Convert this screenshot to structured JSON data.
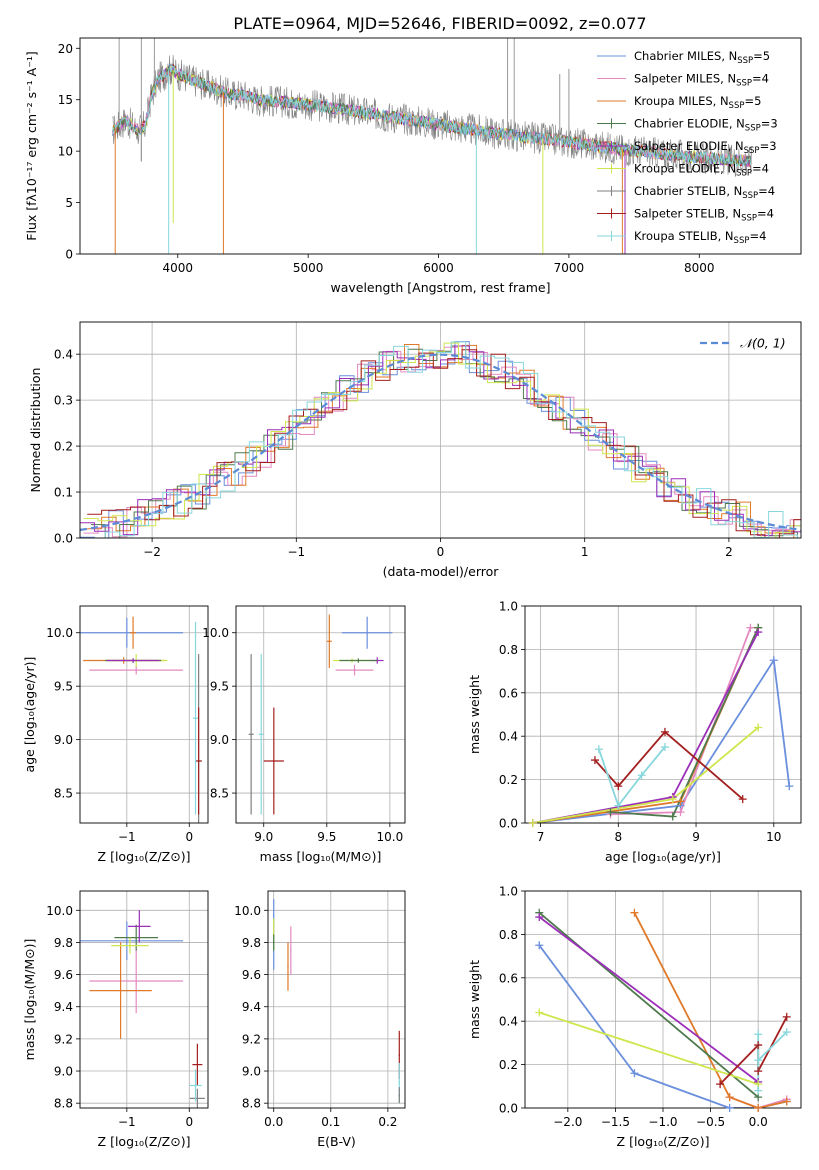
{
  "figure": {
    "title": "PLATE=0964, MJD=52646, FIBERID=0092, z=0.077"
  },
  "colors": {
    "chabrier_miles": "#6a8fdc",
    "salpeter_miles": "#e48ac0",
    "kroupa_miles": "#e07a28",
    "chabrier_elodie": "#4e7a4e",
    "salpeter_elodie": "#9b2fb8",
    "kroupa_elodie": "#cfe64e",
    "chabrier_stelib": "#7f7f7f",
    "salpeter_stelib": "#a31f1f",
    "kroupa_stelib": "#87d7dc",
    "gaussian": "#5b8bd6"
  },
  "legend_spectrum": [
    {
      "label": "Chabrier MILES, N",
      "sub": "SSP",
      "tail": "=5",
      "color_key": "chabrier_miles"
    },
    {
      "label": "Salpeter MILES, N",
      "sub": "SSP",
      "tail": "=4",
      "color_key": "salpeter_miles"
    },
    {
      "label": "Kroupa MILES, N",
      "sub": "SSP",
      "tail": "=5",
      "color_key": "kroupa_miles"
    },
    {
      "label": "Chabrier ELODIE, N",
      "sub": "SSP",
      "tail": "=3",
      "color_key": "chabrier_elodie"
    },
    {
      "label": "Salpeter ELODIE, N",
      "sub": "SSP",
      "tail": "=3",
      "color_key": "salpeter_elodie"
    },
    {
      "label": "Kroupa ELODIE, N",
      "sub": "SSP",
      "tail": "=4",
      "color_key": "kroupa_elodie"
    },
    {
      "label": "Chabrier STELIB, N",
      "sub": "SSP",
      "tail": "=4",
      "color_key": "chabrier_stelib"
    },
    {
      "label": "Salpeter STELIB, N",
      "sub": "SSP",
      "tail": "=4",
      "color_key": "salpeter_stelib"
    },
    {
      "label": "Kroupa STELIB, N",
      "sub": "SSP",
      "tail": "=4",
      "color_key": "kroupa_stelib"
    }
  ],
  "chart_data": [
    {
      "id": "spectrum",
      "type": "line",
      "xlabel": "wavelength [Angstrom, rest frame]",
      "ylabel": "Flux [fλ10⁻¹⁷ erg cm⁻² s⁻¹ A⁻¹]",
      "xlim": [
        3250,
        8780
      ],
      "ylim": [
        0,
        21
      ],
      "xticks": [
        4000,
        5000,
        6000,
        7000,
        8000
      ],
      "yticks": [
        0,
        5,
        10,
        15,
        20
      ],
      "grid": false,
      "legend": "top-right",
      "data_x": [
        3500,
        3550,
        3600,
        3650,
        3700,
        3750,
        3800,
        3850,
        3900,
        3950,
        4000,
        4100,
        4200,
        4300,
        4400,
        4500,
        4600,
        4800,
        5000,
        5200,
        5400,
        5600,
        5800,
        6000,
        6200,
        6400,
        6600,
        6800,
        7000,
        7200,
        7400,
        7600,
        7800,
        8000,
        8200,
        8400
      ],
      "data_y": [
        12,
        12.5,
        13,
        12.5,
        12,
        12.5,
        15.5,
        17,
        17.5,
        18,
        17.5,
        17,
        16.5,
        16,
        15.5,
        15.5,
        15,
        14.8,
        14.5,
        14.2,
        13.8,
        13.4,
        13,
        12.6,
        12.2,
        11.8,
        11.5,
        11.2,
        10.9,
        10.5,
        10.2,
        9.9,
        9.6,
        9.4,
        9.2,
        9
      ],
      "dropouts": [
        {
          "x": 3520,
          "bottom": 0,
          "color_key": "kroupa_miles"
        },
        {
          "x": 3720,
          "bottom": 9,
          "color_key": "chabrier_stelib"
        },
        {
          "x": 3930,
          "bottom": 0,
          "color_key": "kroupa_stelib"
        },
        {
          "x": 3965,
          "bottom": 3,
          "color_key": "kroupa_elodie"
        },
        {
          "x": 4350,
          "bottom": 0,
          "color_key": "kroupa_miles"
        },
        {
          "x": 6290,
          "bottom": 0,
          "color_key": "kroupa_stelib"
        },
        {
          "x": 6800,
          "bottom": 0,
          "color_key": "kroupa_elodie"
        },
        {
          "x": 7410,
          "bottom": 0,
          "color_key": "kroupa_miles"
        },
        {
          "x": 7430,
          "bottom": 0,
          "color_key": "salpeter_elodie"
        }
      ],
      "noise_spikes": [
        {
          "x": 3550,
          "top": 21
        },
        {
          "x": 3720,
          "top": 21
        },
        {
          "x": 3820,
          "top": 21
        },
        {
          "x": 6530,
          "top": 21
        },
        {
          "x": 6580,
          "top": 21
        },
        {
          "x": 6930,
          "top": 17.5
        },
        {
          "x": 7000,
          "top": 18
        }
      ]
    },
    {
      "id": "residuals",
      "type": "line",
      "xlabel": "(data-model)/error",
      "ylabel": "Normed distribution",
      "xlim": [
        -2.5,
        2.5
      ],
      "ylim": [
        0,
        0.47
      ],
      "xticks": [
        -2,
        -1,
        0,
        1,
        2
      ],
      "yticks": [
        0.0,
        0.1,
        0.2,
        0.3,
        0.4
      ],
      "grid": true,
      "legend": "top-right",
      "gaussian_label": "𝒩(0, 1)",
      "histogram_bin_width": 0.1
    },
    {
      "id": "age_vs_Z",
      "type": "scatter",
      "xlabel": "Z [log₁₀(Z/Z⊙)]",
      "ylabel": "age  [log₁₀(age/yr)]",
      "xlim": [
        -1.75,
        0.3
      ],
      "ylim": [
        8.22,
        10.25
      ],
      "xticks": [
        -1,
        0
      ],
      "yticks": [
        8.5,
        9.0,
        9.5,
        10.0
      ],
      "grid": true,
      "points": [
        {
          "x": -1.0,
          "y": 10.0,
          "xerr": 0.9,
          "yerr": 0.14,
          "color_key": "chabrier_miles"
        },
        {
          "x": -0.9,
          "y": 10.0,
          "xerr": 0.05,
          "yerr": 0.15,
          "color_key": "kroupa_miles"
        },
        {
          "x": -0.85,
          "y": 9.65,
          "xerr": 0.75,
          "yerr": 0.04,
          "color_key": "salpeter_miles"
        },
        {
          "x": -1.05,
          "y": 9.74,
          "xerr": 0.65,
          "yerr": 0.03,
          "color_key": "kroupa_miles"
        },
        {
          "x": -0.85,
          "y": 9.74,
          "xerr": 0.5,
          "yerr": 0.06,
          "color_key": "kroupa_elodie"
        },
        {
          "x": -0.9,
          "y": 9.74,
          "xerr": 0.45,
          "yerr": 0.02,
          "color_key": "chabrier_elodie"
        },
        {
          "x": -0.9,
          "y": 9.74,
          "xerr": 0.42,
          "yerr": 0.02,
          "color_key": "salpeter_elodie"
        },
        {
          "x": 0.15,
          "y": 8.8,
          "xerr": 0.05,
          "yerr": 1.0,
          "color_key": "chabrier_stelib"
        },
        {
          "x": 0.15,
          "y": 8.8,
          "xerr": 0.05,
          "yerr": 0.5,
          "color_key": "salpeter_stelib"
        },
        {
          "x": 0.1,
          "y": 9.2,
          "xerr": 0.04,
          "yerr": 0.9,
          "color_key": "kroupa_stelib"
        }
      ]
    },
    {
      "id": "age_vs_mass",
      "type": "scatter",
      "xlabel": "mass [log₁₀(M/M⊙)]",
      "ylabel": "",
      "xlim": [
        8.78,
        10.12
      ],
      "ylim": [
        8.22,
        10.25
      ],
      "xticks": [
        9.0,
        9.5,
        10.0
      ],
      "yticks": [
        8.5,
        9.0,
        9.5,
        10.0
      ],
      "grid": true,
      "points": [
        {
          "x": 9.82,
          "y": 10.0,
          "xerr": 0.2,
          "yerr": 0.15,
          "color_key": "chabrier_miles"
        },
        {
          "x": 9.52,
          "y": 9.92,
          "xerr": 0.02,
          "yerr": 0.25,
          "color_key": "kroupa_miles"
        },
        {
          "x": 9.72,
          "y": 9.65,
          "xerr": 0.15,
          "yerr": 0.05,
          "color_key": "salpeter_miles"
        },
        {
          "x": 9.7,
          "y": 9.74,
          "xerr": 0.15,
          "yerr": 0.02,
          "color_key": "kroupa_elodie"
        },
        {
          "x": 9.9,
          "y": 9.74,
          "xerr": 0.05,
          "yerr": 0.03,
          "color_key": "salpeter_elodie"
        },
        {
          "x": 9.75,
          "y": 9.74,
          "xerr": 0.15,
          "yerr": 0.02,
          "color_key": "chabrier_elodie"
        },
        {
          "x": 8.9,
          "y": 9.05,
          "xerr": 0.02,
          "yerr": 0.75,
          "color_key": "chabrier_stelib"
        },
        {
          "x": 9.08,
          "y": 8.8,
          "xerr": 0.08,
          "yerr": 0.5,
          "color_key": "salpeter_stelib"
        },
        {
          "x": 8.98,
          "y": 9.05,
          "xerr": 0.02,
          "yerr": 0.75,
          "color_key": "kroupa_stelib"
        }
      ]
    },
    {
      "id": "weight_vs_age",
      "type": "line",
      "xlabel": "age  [log₁₀(age/yr)]",
      "ylabel": "mass weight",
      "xlim": [
        6.8,
        10.35
      ],
      "ylim": [
        0,
        1.0
      ],
      "xticks": [
        7,
        8,
        9,
        10
      ],
      "yticks": [
        0.0,
        0.2,
        0.4,
        0.6,
        0.8,
        1.0
      ],
      "grid": true,
      "series": [
        {
          "color_key": "chabrier_miles",
          "x": [
            6.9,
            8.8,
            10.0,
            10.2
          ],
          "y": [
            0.0,
            0.08,
            0.75,
            0.17
          ]
        },
        {
          "color_key": "salpeter_miles",
          "x": [
            7.9,
            8.8,
            9.7
          ],
          "y": [
            0.04,
            0.05,
            0.9
          ]
        },
        {
          "color_key": "kroupa_miles",
          "x": [
            6.9,
            8.8,
            9.8
          ],
          "y": [
            0.0,
            0.1,
            0.9
          ]
        },
        {
          "color_key": "chabrier_elodie",
          "x": [
            7.9,
            8.7,
            9.8
          ],
          "y": [
            0.05,
            0.03,
            0.9
          ]
        },
        {
          "color_key": "salpeter_elodie",
          "x": [
            6.9,
            8.7,
            9.8
          ],
          "y": [
            0.0,
            0.12,
            0.88
          ]
        },
        {
          "color_key": "kroupa_elodie",
          "x": [
            6.9,
            8.7,
            9.8
          ],
          "y": [
            0.0,
            0.11,
            0.44
          ]
        },
        {
          "color_key": "salpeter_stelib",
          "x": [
            7.7,
            8.0,
            8.6,
            9.6
          ],
          "y": [
            0.29,
            0.17,
            0.42,
            0.11
          ]
        },
        {
          "color_key": "kroupa_stelib",
          "x": [
            7.75,
            8.0,
            8.3,
            8.6
          ],
          "y": [
            0.34,
            0.08,
            0.22,
            0.35
          ]
        }
      ]
    },
    {
      "id": "mass_vs_Z",
      "type": "scatter",
      "xlabel": "Z [log₁₀(Z/Z⊙)]",
      "ylabel": "mass [log₁₀(M/M⊙)]",
      "xlim": [
        -1.75,
        0.3
      ],
      "ylim": [
        8.77,
        10.12
      ],
      "xticks": [
        -1,
        0
      ],
      "yticks": [
        8.8,
        9.0,
        9.2,
        9.4,
        9.6,
        9.8,
        10.0
      ],
      "grid": true,
      "points": [
        {
          "x": -1.0,
          "y": 9.81,
          "xerr": 0.9,
          "yerr": 0.12,
          "color_key": "chabrier_miles"
        },
        {
          "x": -0.85,
          "y": 9.56,
          "xerr": 0.75,
          "yerr": 0.2,
          "color_key": "salpeter_miles"
        },
        {
          "x": -1.1,
          "y": 9.5,
          "xerr": 0.5,
          "yerr": 0.3,
          "color_key": "kroupa_miles"
        },
        {
          "x": -0.85,
          "y": 9.83,
          "xerr": 0.35,
          "yerr": 0.08,
          "color_key": "chabrier_elodie"
        },
        {
          "x": -0.8,
          "y": 9.9,
          "xerr": 0.18,
          "yerr": 0.1,
          "color_key": "salpeter_elodie"
        },
        {
          "x": -0.95,
          "y": 9.78,
          "xerr": 0.3,
          "yerr": 0.05,
          "color_key": "kroupa_elodie"
        },
        {
          "x": 0.13,
          "y": 8.83,
          "xerr": 0.12,
          "yerr": 0.06,
          "color_key": "chabrier_stelib"
        },
        {
          "x": 0.13,
          "y": 9.04,
          "xerr": 0.08,
          "yerr": 0.13,
          "color_key": "salpeter_stelib"
        },
        {
          "x": 0.1,
          "y": 8.91,
          "xerr": 0.1,
          "yerr": 0.1,
          "color_key": "kroupa_stelib"
        }
      ]
    },
    {
      "id": "mass_vs_EBV",
      "type": "scatter",
      "xlabel": "E(B-V)",
      "ylabel": "",
      "xlim": [
        -0.01,
        0.23
      ],
      "ylim": [
        8.77,
        10.12
      ],
      "xticks": [
        0.0,
        0.1,
        0.2
      ],
      "yticks": [
        8.8,
        9.0,
        9.2,
        9.4,
        9.6,
        9.8,
        10.0
      ],
      "grid": true,
      "points": [
        {
          "x": 0.0,
          "y": 9.85,
          "xerr": 0.0,
          "yerr": 0.22,
          "color_key": "chabrier_miles"
        },
        {
          "x": 0.03,
          "y": 9.75,
          "xerr": 0.0,
          "yerr": 0.15,
          "color_key": "salpeter_miles"
        },
        {
          "x": 0.025,
          "y": 9.65,
          "xerr": 0.0,
          "yerr": 0.15,
          "color_key": "kroupa_miles"
        },
        {
          "x": 0.0,
          "y": 9.85,
          "xerr": 0.0,
          "yerr": 0.1,
          "color_key": "kroupa_elodie"
        },
        {
          "x": 0.0,
          "y": 9.8,
          "xerr": 0.0,
          "yerr": 0.05,
          "color_key": "chabrier_elodie"
        },
        {
          "x": 0.22,
          "y": 9.1,
          "xerr": 0.0,
          "yerr": 0.15,
          "color_key": "salpeter_stelib"
        },
        {
          "x": 0.22,
          "y": 8.93,
          "xerr": 0.0,
          "yerr": 0.12,
          "color_key": "kroupa_stelib"
        },
        {
          "x": 0.22,
          "y": 8.85,
          "xerr": 0.0,
          "yerr": 0.05,
          "color_key": "chabrier_stelib"
        }
      ]
    },
    {
      "id": "weight_vs_Z",
      "type": "line",
      "xlabel": "Z [log₁₀(Z/Z⊙)]",
      "ylabel": "mass weight",
      "xlim": [
        -2.45,
        0.45
      ],
      "ylim": [
        0,
        1.0
      ],
      "xticks": [
        -2.0,
        -1.5,
        -1.0,
        -0.5,
        0.0
      ],
      "yticks": [
        0.0,
        0.2,
        0.4,
        0.6,
        0.8,
        1.0
      ],
      "grid": true,
      "series": [
        {
          "color_key": "chabrier_miles",
          "x": [
            -2.3,
            -1.3,
            -0.3,
            0.0,
            0.3
          ],
          "y": [
            0.75,
            0.16,
            0.0,
            0.0,
            0.03
          ]
        },
        {
          "color_key": "salpeter_miles",
          "x": [
            -0.3,
            0.0,
            0.3
          ],
          "y": [
            0.05,
            0.0,
            0.04
          ]
        },
        {
          "color_key": "kroupa_miles",
          "x": [
            -1.3,
            -0.3,
            0.0,
            0.3
          ],
          "y": [
            0.9,
            0.05,
            0.0,
            0.03
          ]
        },
        {
          "color_key": "chabrier_elodie",
          "x": [
            -2.3,
            0.0
          ],
          "y": [
            0.9,
            0.05
          ]
        },
        {
          "color_key": "salpeter_elodie",
          "x": [
            -2.3,
            0.0
          ],
          "y": [
            0.88,
            0.12
          ]
        },
        {
          "color_key": "kroupa_elodie",
          "x": [
            -2.3,
            0.0
          ],
          "y": [
            0.44,
            0.11
          ]
        },
        {
          "color_key": "salpeter_stelib",
          "x": [
            -0.4,
            0.0,
            0.0,
            0.3
          ],
          "y": [
            0.11,
            0.29,
            0.17,
            0.42
          ]
        },
        {
          "color_key": "kroupa_stelib",
          "x": [
            0.0,
            0.0,
            0.0,
            0.3
          ],
          "y": [
            0.34,
            0.08,
            0.22,
            0.35
          ]
        }
      ]
    }
  ]
}
